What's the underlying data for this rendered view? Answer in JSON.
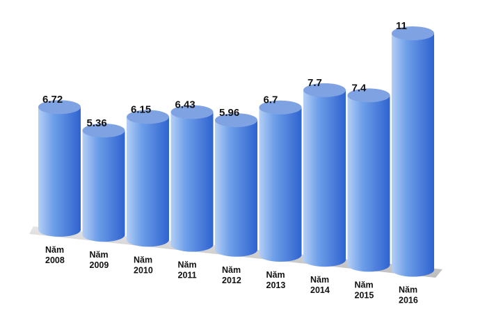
{
  "chart_data": {
    "type": "bar",
    "style": "3d-cylinder",
    "categories": [
      "Năm 2008",
      "Năm 2009",
      "Năm 2010",
      "Năm 2011",
      "Năm 2012",
      "Năm 2013",
      "Năm 2014",
      "Năm 2015",
      "Năm 2016"
    ],
    "category_lines": [
      [
        "Năm",
        "2008"
      ],
      [
        "Năm",
        "2009"
      ],
      [
        "Năm",
        "2010"
      ],
      [
        "Năm",
        "2011"
      ],
      [
        "Năm",
        "2012"
      ],
      [
        "Năm",
        "2013"
      ],
      [
        "Năm",
        "2014"
      ],
      [
        "Năm",
        "2015"
      ],
      [
        "Năm",
        "2016"
      ]
    ],
    "values": [
      6.72,
      5.36,
      6.15,
      6.43,
      5.96,
      6.7,
      7.7,
      7.4,
      11
    ],
    "value_labels": [
      "6.72",
      "5.36",
      "6.15",
      "6.43",
      "5.96",
      "6.7",
      "7.7",
      "7.4",
      "11"
    ],
    "title": "",
    "xlabel": "",
    "ylabel": "",
    "grid": false,
    "legend": "none",
    "colors": {
      "bar_light": "#b5cff5",
      "bar_mid": "#6e9fe9",
      "bar_dark": "#2f63cf",
      "bar_top": "#7fa3e2",
      "floor": "#d9d9d9"
    }
  }
}
